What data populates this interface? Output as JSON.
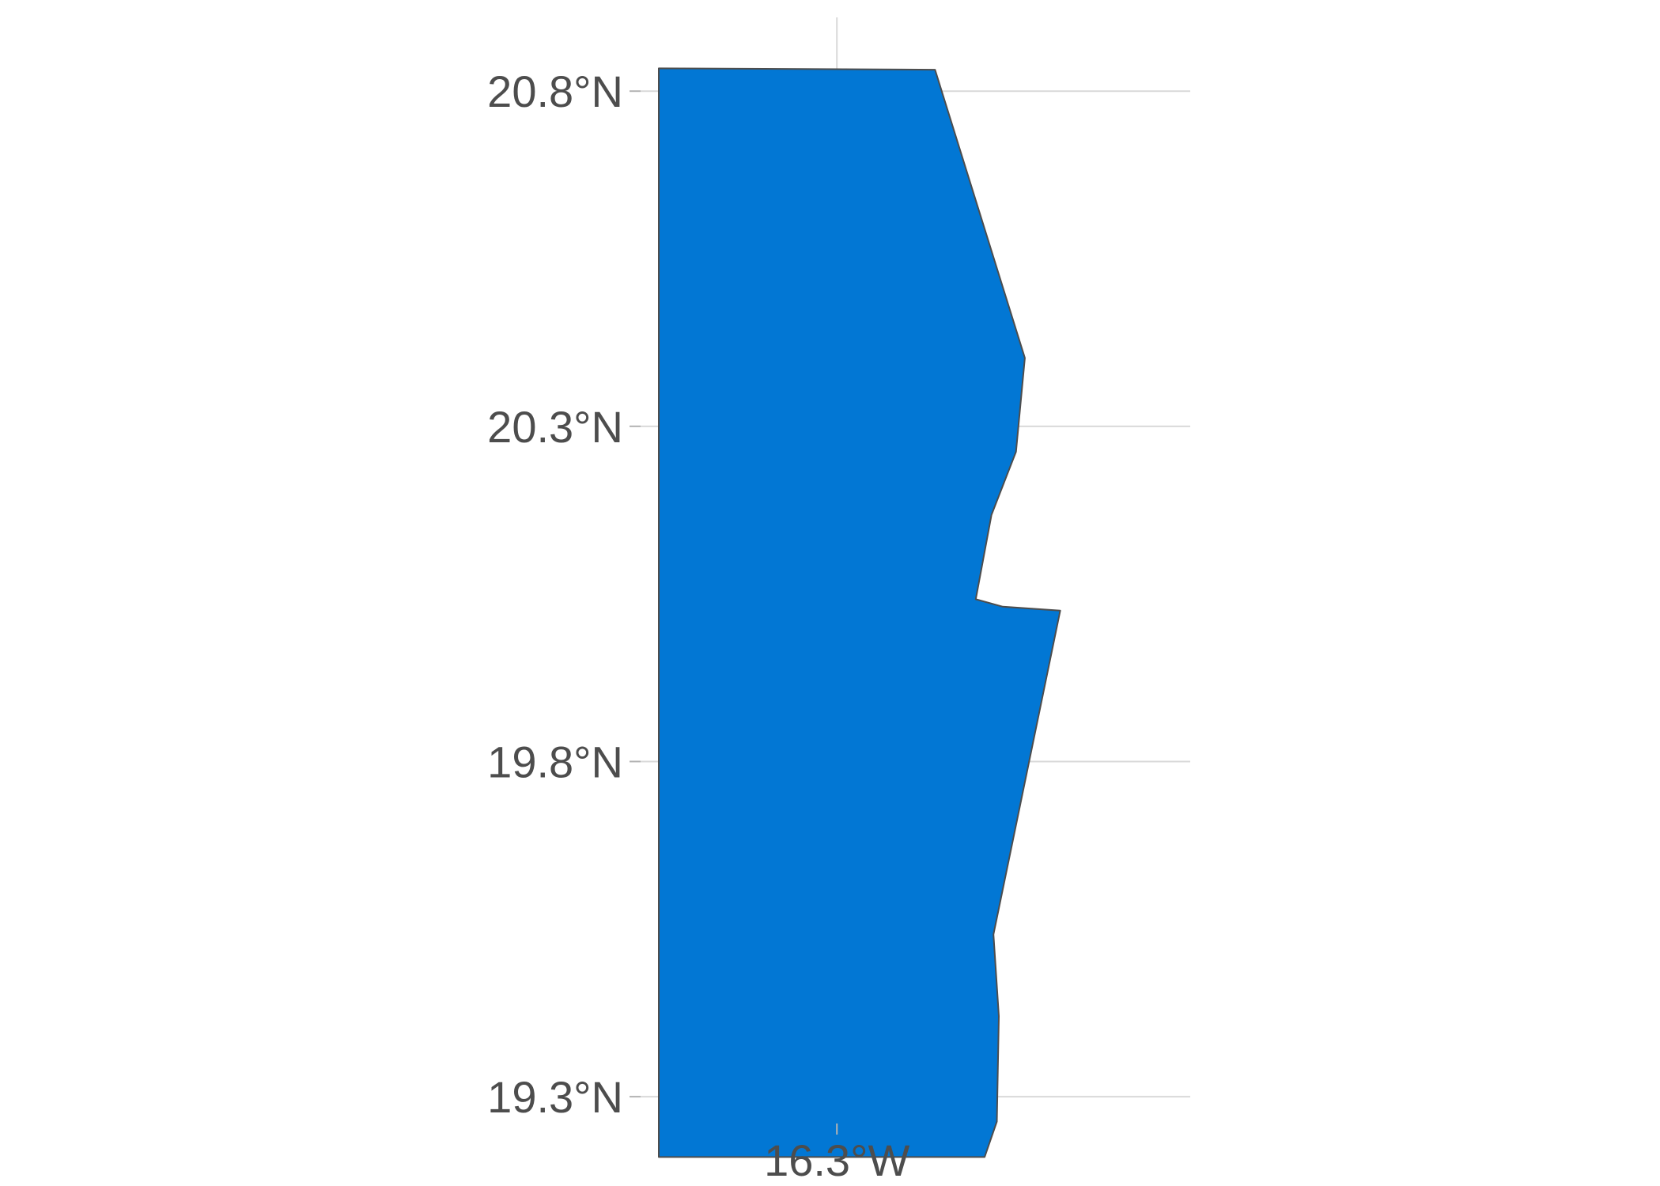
{
  "map": {
    "region_fill": "#0277d4",
    "region_stroke": "#4d4d4d",
    "y_ticks": [
      {
        "value": 20.8,
        "label": "20.8°N"
      },
      {
        "value": 20.3,
        "label": "20.3°N"
      },
      {
        "value": 19.8,
        "label": "19.8°N"
      },
      {
        "value": 19.3,
        "label": "19.3°N"
      }
    ],
    "x_ticks": [
      {
        "value": -16.3,
        "label": "16.3°W"
      }
    ],
    "grid": true
  },
  "chart_data": {
    "type": "map",
    "xlim": [
      -16.7,
      -15.58
    ],
    "ylim": [
      19.26,
      20.91
    ],
    "polygon": [
      [
        -16.663,
        20.834
      ],
      [
        -16.1,
        20.832
      ],
      [
        -15.917,
        20.402
      ],
      [
        -15.935,
        20.262
      ],
      [
        -15.985,
        20.168
      ],
      [
        -16.017,
        20.042
      ],
      [
        -15.962,
        20.031
      ],
      [
        -15.845,
        20.025
      ],
      [
        -15.981,
        19.542
      ],
      [
        -15.97,
        19.42
      ],
      [
        -15.974,
        19.263
      ],
      [
        -15.999,
        19.21
      ],
      [
        -16.663,
        19.21
      ]
    ]
  }
}
